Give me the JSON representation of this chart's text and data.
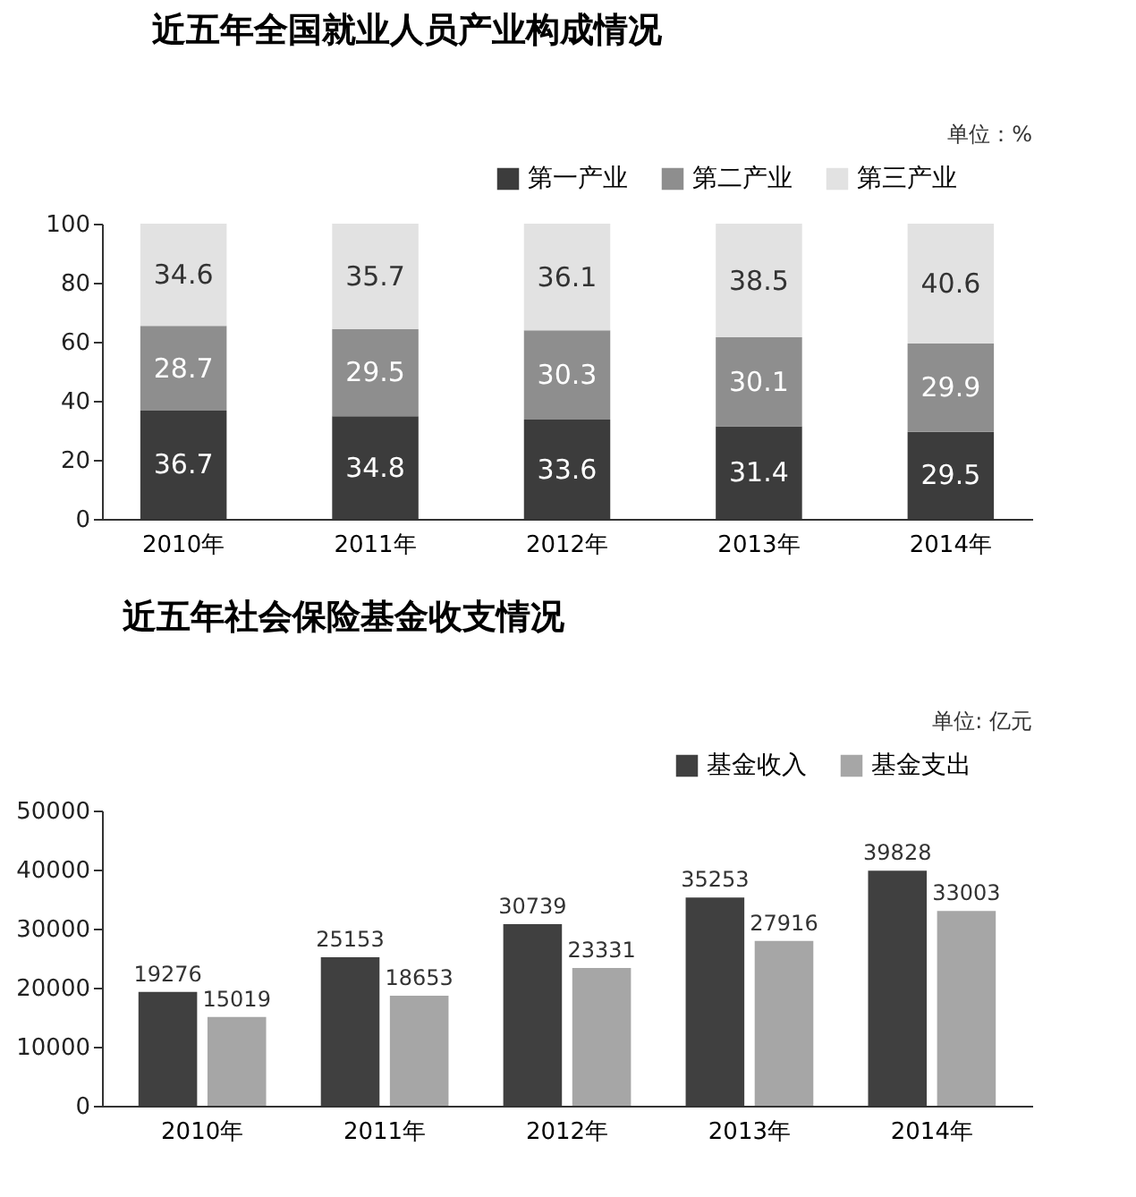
{
  "chart_data": [
    {
      "type": "bar",
      "title": "近五年全国就业人员产业构成情况",
      "annotations": [
        "单位：%"
      ],
      "categories": [
        "2010年",
        "2011年",
        "2012年",
        "2013年",
        "2014年"
      ],
      "stacked": true,
      "series": [
        {
          "name": "第一产业",
          "color": "#3c3c3c",
          "values": [
            36.7,
            34.8,
            33.6,
            31.4,
            29.5
          ]
        },
        {
          "name": "第二产业",
          "color": "#8e8e8e",
          "values": [
            28.7,
            29.5,
            30.3,
            30.1,
            29.9
          ]
        },
        {
          "name": "第三产业",
          "color": "#e2e2e2",
          "values": [
            34.6,
            35.7,
            36.1,
            38.5,
            40.6
          ]
        }
      ],
      "ylim": [
        0,
        100
      ],
      "yticks": [
        0,
        20,
        40,
        60,
        80,
        100
      ],
      "grid": false,
      "legend": "top right",
      "data_labels": true
    },
    {
      "type": "bar",
      "title": "近五年社会保险基金收支情况",
      "annotations": [
        "单位: 亿元"
      ],
      "categories": [
        "2010年",
        "2011年",
        "2012年",
        "2013年",
        "2014年"
      ],
      "series": [
        {
          "name": "基金收入",
          "color": "#404040",
          "values": [
            19276,
            25153,
            30739,
            35253,
            39828
          ]
        },
        {
          "name": "基金支出",
          "color": "#a6a6a6",
          "values": [
            15019,
            18653,
            23331,
            27916,
            33003
          ]
        }
      ],
      "ylim": [
        0,
        50000
      ],
      "yticks": [
        0,
        10000,
        20000,
        30000,
        40000,
        50000
      ],
      "grid": false,
      "legend": "top right",
      "data_labels": true
    }
  ]
}
